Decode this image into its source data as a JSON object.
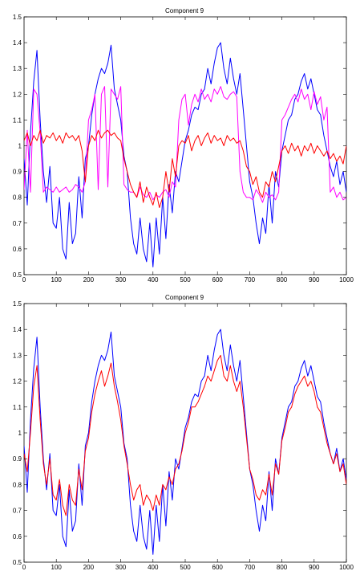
{
  "chart_data": [
    {
      "type": "line",
      "title": "Component 9",
      "xlabel": "",
      "ylabel": "",
      "xlim": [
        0,
        1000
      ],
      "ylim": [
        0.5,
        1.5
      ],
      "x_ticks": [
        "0",
        "100",
        "200",
        "300",
        "400",
        "500",
        "600",
        "700",
        "800",
        "900",
        "1000"
      ],
      "y_ticks": [
        "0.5",
        "0.6",
        "0.7",
        "0.8",
        "0.9",
        "1",
        "1.1",
        "1.2",
        "1.3",
        "1.4",
        "1.5"
      ],
      "grid": false,
      "legend": "none",
      "series": [
        {
          "color": "#0000ff",
          "x": [
            0,
            10,
            20,
            30,
            40,
            50,
            60,
            70,
            80,
            90,
            100,
            110,
            120,
            130,
            140,
            150,
            160,
            170,
            180,
            190,
            200,
            210,
            220,
            230,
            240,
            250,
            260,
            270,
            280,
            290,
            300,
            310,
            320,
            330,
            340,
            350,
            360,
            370,
            380,
            390,
            400,
            410,
            420,
            430,
            440,
            450,
            460,
            470,
            480,
            490,
            500,
            510,
            520,
            530,
            540,
            550,
            560,
            570,
            580,
            590,
            600,
            610,
            620,
            630,
            640,
            650,
            660,
            670,
            680,
            690,
            700,
            710,
            720,
            730,
            740,
            750,
            760,
            770,
            780,
            790,
            800,
            810,
            820,
            830,
            840,
            850,
            860,
            870,
            880,
            890,
            900,
            910,
            920,
            930,
            940,
            950,
            960,
            970,
            980,
            990,
            1000
          ],
          "y": [
            0.95,
            0.77,
            1.05,
            1.25,
            1.37,
            1.1,
            0.9,
            0.78,
            0.92,
            0.7,
            0.68,
            0.8,
            0.6,
            0.56,
            0.78,
            0.62,
            0.66,
            0.88,
            0.72,
            0.95,
            1.0,
            1.12,
            1.2,
            1.26,
            1.3,
            1.28,
            1.32,
            1.39,
            1.22,
            1.16,
            1.1,
            0.96,
            0.9,
            0.72,
            0.62,
            0.58,
            0.72,
            0.6,
            0.55,
            0.7,
            0.53,
            0.72,
            0.58,
            0.8,
            0.64,
            0.85,
            0.74,
            0.9,
            0.86,
            0.94,
            1.02,
            1.06,
            1.12,
            1.15,
            1.14,
            1.2,
            1.22,
            1.3,
            1.24,
            1.32,
            1.38,
            1.4,
            1.3,
            1.24,
            1.34,
            1.26,
            1.2,
            1.28,
            1.14,
            1.0,
            0.86,
            0.8,
            0.7,
            0.62,
            0.72,
            0.66,
            0.85,
            0.7,
            0.9,
            0.84,
            0.98,
            1.04,
            1.1,
            1.12,
            1.18,
            1.2,
            1.25,
            1.28,
            1.22,
            1.26,
            1.2,
            1.14,
            1.12,
            1.04,
            0.98,
            0.92,
            0.88,
            0.94,
            0.85,
            0.9,
            0.82
          ]
        },
        {
          "color": "#ff00ff",
          "x": [
            0,
            10,
            20,
            30,
            40,
            50,
            60,
            70,
            80,
            90,
            100,
            110,
            120,
            130,
            140,
            150,
            160,
            170,
            180,
            190,
            200,
            210,
            220,
            230,
            240,
            250,
            260,
            270,
            280,
            290,
            300,
            310,
            320,
            330,
            340,
            350,
            360,
            370,
            380,
            390,
            400,
            410,
            420,
            430,
            440,
            450,
            460,
            470,
            480,
            490,
            500,
            510,
            520,
            530,
            540,
            550,
            560,
            570,
            580,
            590,
            600,
            610,
            620,
            630,
            640,
            650,
            660,
            670,
            680,
            690,
            700,
            710,
            720,
            730,
            740,
            750,
            760,
            770,
            780,
            790,
            800,
            810,
            820,
            830,
            840,
            850,
            860,
            870,
            880,
            890,
            900,
            910,
            920,
            930,
            940,
            950,
            960,
            970,
            980,
            990,
            1000
          ],
          "y": [
            0.83,
            1.06,
            0.82,
            1.22,
            1.2,
            1.05,
            0.82,
            0.84,
            0.83,
            0.82,
            0.84,
            0.82,
            0.83,
            0.84,
            0.82,
            0.83,
            0.85,
            0.84,
            0.82,
            0.86,
            1.1,
            1.14,
            1.2,
            0.83,
            1.2,
            1.23,
            0.84,
            1.22,
            1.2,
            1.18,
            1.23,
            0.85,
            0.83,
            0.82,
            0.82,
            0.8,
            0.84,
            0.81,
            0.8,
            0.82,
            0.79,
            0.81,
            0.8,
            0.82,
            0.83,
            0.8,
            0.86,
            0.84,
            1.1,
            1.18,
            1.2,
            1.08,
            1.16,
            1.2,
            1.17,
            1.22,
            1.18,
            1.2,
            1.17,
            1.22,
            1.2,
            1.23,
            1.19,
            1.18,
            1.2,
            1.21,
            1.19,
            0.9,
            0.82,
            0.8,
            0.8,
            0.79,
            0.83,
            0.81,
            0.78,
            0.82,
            0.8,
            0.81,
            0.79,
            0.82,
            1.1,
            1.12,
            1.15,
            1.18,
            1.2,
            1.17,
            1.22,
            1.18,
            1.2,
            1.14,
            1.21,
            1.16,
            1.19,
            1.1,
            1.15,
            0.82,
            0.84,
            0.8,
            0.82,
            0.79,
            0.8
          ]
        },
        {
          "color": "#ff0000",
          "x": [
            0,
            10,
            20,
            30,
            40,
            50,
            60,
            70,
            80,
            90,
            100,
            110,
            120,
            130,
            140,
            150,
            160,
            170,
            180,
            190,
            200,
            210,
            220,
            230,
            240,
            250,
            260,
            270,
            280,
            290,
            300,
            310,
            320,
            330,
            340,
            350,
            360,
            370,
            380,
            390,
            400,
            410,
            420,
            430,
            440,
            450,
            460,
            470,
            480,
            490,
            500,
            510,
            520,
            530,
            540,
            550,
            560,
            570,
            580,
            590,
            600,
            610,
            620,
            630,
            640,
            650,
            660,
            670,
            680,
            690,
            700,
            710,
            720,
            730,
            740,
            750,
            760,
            770,
            780,
            790,
            800,
            810,
            820,
            830,
            840,
            850,
            860,
            870,
            880,
            890,
            900,
            910,
            920,
            930,
            940,
            950,
            960,
            970,
            980,
            990,
            1000
          ],
          "y": [
            1.02,
            1.05,
            1.0,
            1.04,
            1.02,
            1.06,
            1.01,
            1.04,
            1.03,
            1.05,
            1.02,
            1.04,
            1.01,
            1.05,
            1.03,
            1.04,
            1.02,
            1.04,
            0.98,
            0.86,
            1.0,
            1.04,
            1.02,
            1.06,
            1.03,
            1.05,
            1.06,
            1.04,
            1.05,
            1.03,
            1.02,
            0.95,
            0.9,
            0.85,
            0.82,
            0.8,
            0.86,
            0.78,
            0.84,
            0.8,
            0.77,
            0.82,
            0.76,
            0.8,
            0.9,
            0.82,
            0.95,
            0.88,
            1.0,
            1.02,
            1.01,
            1.04,
            0.98,
            1.02,
            1.04,
            1.0,
            1.03,
            1.05,
            1.01,
            1.04,
            1.02,
            1.03,
            1.0,
            1.04,
            1.02,
            1.03,
            1.01,
            1.02,
            0.98,
            0.92,
            0.9,
            0.85,
            0.88,
            0.82,
            0.8,
            0.86,
            0.84,
            0.9,
            0.86,
            0.92,
            0.98,
            1.0,
            0.97,
            1.01,
            0.98,
            1.0,
            0.96,
            1.0,
            0.98,
            1.01,
            0.97,
            1.0,
            0.98,
            0.96,
            0.98,
            0.95,
            0.97,
            0.94,
            0.96,
            0.93,
            1.0
          ]
        }
      ]
    },
    {
      "type": "line",
      "title": "Component 9",
      "xlabel": "",
      "ylabel": "",
      "xlim": [
        0,
        1000
      ],
      "ylim": [
        0.5,
        1.5
      ],
      "x_ticks": [
        "0",
        "100",
        "200",
        "300",
        "400",
        "500",
        "600",
        "700",
        "800",
        "900",
        "1000"
      ],
      "y_ticks": [
        "0.5",
        "0.6",
        "0.7",
        "0.8",
        "0.9",
        "1",
        "1.1",
        "1.2",
        "1.3",
        "1.4",
        "1.5"
      ],
      "grid": false,
      "legend": "none",
      "series": [
        {
          "color": "#0000ff",
          "x": [
            0,
            10,
            20,
            30,
            40,
            50,
            60,
            70,
            80,
            90,
            100,
            110,
            120,
            130,
            140,
            150,
            160,
            170,
            180,
            190,
            200,
            210,
            220,
            230,
            240,
            250,
            260,
            270,
            280,
            290,
            300,
            310,
            320,
            330,
            340,
            350,
            360,
            370,
            380,
            390,
            400,
            410,
            420,
            430,
            440,
            450,
            460,
            470,
            480,
            490,
            500,
            510,
            520,
            530,
            540,
            550,
            560,
            570,
            580,
            590,
            600,
            610,
            620,
            630,
            640,
            650,
            660,
            670,
            680,
            690,
            700,
            710,
            720,
            730,
            740,
            750,
            760,
            770,
            780,
            790,
            800,
            810,
            820,
            830,
            840,
            850,
            860,
            870,
            880,
            890,
            900,
            910,
            920,
            930,
            940,
            950,
            960,
            970,
            980,
            990,
            1000
          ],
          "y": [
            0.95,
            0.77,
            1.05,
            1.25,
            1.37,
            1.1,
            0.9,
            0.78,
            0.92,
            0.7,
            0.68,
            0.8,
            0.6,
            0.56,
            0.78,
            0.62,
            0.66,
            0.88,
            0.72,
            0.95,
            1.0,
            1.12,
            1.2,
            1.26,
            1.3,
            1.28,
            1.32,
            1.39,
            1.22,
            1.16,
            1.1,
            0.96,
            0.9,
            0.72,
            0.62,
            0.58,
            0.72,
            0.6,
            0.55,
            0.7,
            0.53,
            0.72,
            0.58,
            0.8,
            0.64,
            0.85,
            0.74,
            0.9,
            0.86,
            0.94,
            1.02,
            1.06,
            1.12,
            1.15,
            1.14,
            1.2,
            1.22,
            1.3,
            1.24,
            1.32,
            1.38,
            1.4,
            1.3,
            1.24,
            1.34,
            1.26,
            1.2,
            1.28,
            1.14,
            1.0,
            0.86,
            0.8,
            0.7,
            0.62,
            0.72,
            0.66,
            0.85,
            0.7,
            0.9,
            0.84,
            0.98,
            1.04,
            1.1,
            1.12,
            1.18,
            1.2,
            1.25,
            1.28,
            1.22,
            1.26,
            1.2,
            1.14,
            1.12,
            1.04,
            0.98,
            0.92,
            0.88,
            0.94,
            0.85,
            0.9,
            0.82
          ]
        },
        {
          "color": "#ff0000",
          "x": [
            0,
            10,
            20,
            30,
            40,
            50,
            60,
            70,
            80,
            90,
            100,
            110,
            120,
            130,
            140,
            150,
            160,
            170,
            180,
            190,
            200,
            210,
            220,
            230,
            240,
            250,
            260,
            270,
            280,
            290,
            300,
            310,
            320,
            330,
            340,
            350,
            360,
            370,
            380,
            390,
            400,
            410,
            420,
            430,
            440,
            450,
            460,
            470,
            480,
            490,
            500,
            510,
            520,
            530,
            540,
            550,
            560,
            570,
            580,
            590,
            600,
            610,
            620,
            630,
            640,
            650,
            660,
            670,
            680,
            690,
            700,
            710,
            720,
            730,
            740,
            750,
            760,
            770,
            780,
            790,
            800,
            810,
            820,
            830,
            840,
            850,
            860,
            870,
            880,
            890,
            900,
            910,
            920,
            930,
            940,
            950,
            960,
            970,
            980,
            990,
            1000
          ],
          "y": [
            0.92,
            0.85,
            1.0,
            1.18,
            1.26,
            1.05,
            0.88,
            0.8,
            0.9,
            0.76,
            0.74,
            0.82,
            0.72,
            0.68,
            0.8,
            0.74,
            0.72,
            0.86,
            0.78,
            0.93,
            0.98,
            1.08,
            1.15,
            1.2,
            1.24,
            1.18,
            1.22,
            1.27,
            1.18,
            1.12,
            1.05,
            0.95,
            0.88,
            0.8,
            0.74,
            0.78,
            0.8,
            0.72,
            0.76,
            0.74,
            0.7,
            0.76,
            0.72,
            0.8,
            0.78,
            0.83,
            0.8,
            0.86,
            0.88,
            0.93,
            1.0,
            1.04,
            1.1,
            1.1,
            1.12,
            1.15,
            1.18,
            1.22,
            1.2,
            1.24,
            1.28,
            1.3,
            1.22,
            1.2,
            1.26,
            1.2,
            1.16,
            1.2,
            1.1,
            0.98,
            0.86,
            0.82,
            0.76,
            0.74,
            0.78,
            0.76,
            0.84,
            0.76,
            0.88,
            0.84,
            0.97,
            1.02,
            1.08,
            1.1,
            1.15,
            1.18,
            1.2,
            1.22,
            1.18,
            1.2,
            1.16,
            1.1,
            1.08,
            1.02,
            0.96,
            0.92,
            0.88,
            0.92,
            0.85,
            0.88,
            0.8
          ]
        }
      ]
    }
  ]
}
